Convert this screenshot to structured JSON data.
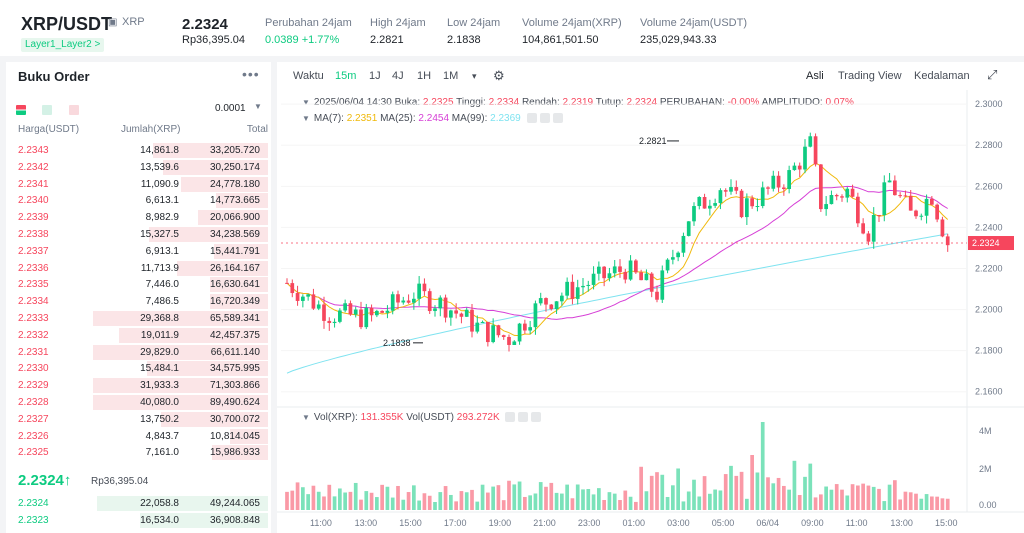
{
  "header": {
    "pair": "XRP/USDT",
    "base_label": "XRP",
    "tag": "Layer1_Layer2 >",
    "last_price": "2.2324",
    "last_price_rp": "Rp36,395.04",
    "stats": [
      {
        "label": "Perubahan 24jam",
        "value": "0.0389 +1.77%",
        "color": "#0ecb81"
      },
      {
        "label": "High 24jam",
        "value": "2.2821"
      },
      {
        "label": "Low 24jam",
        "value": "2.1838"
      },
      {
        "label": "Volume 24jam(XRP)",
        "value": "104,861,501.50"
      },
      {
        "label": "Volume 24jam(USDT)",
        "value": "235,029,943.33"
      }
    ]
  },
  "orderbook": {
    "title": "Buku Order",
    "more": "•••",
    "tick": "0.0001",
    "col_price": "Harga(USDT)",
    "col_qty": "Jumlah(XRP)",
    "col_total": "Total",
    "asks": [
      {
        "p": "2.2343",
        "q": "14,861.8",
        "t": "33,205.720",
        "d": 0.66
      },
      {
        "p": "2.2342",
        "q": "13,539.6",
        "t": "30,250.174",
        "d": 0.6
      },
      {
        "p": "2.2341",
        "q": "11,090.9",
        "t": "24,778.180",
        "d": 0.5
      },
      {
        "p": "2.2340",
        "q": "6,613.1",
        "t": "14,773.665",
        "d": 0.3
      },
      {
        "p": "2.2339",
        "q": "8,982.9",
        "t": "20,066.900",
        "d": 0.4
      },
      {
        "p": "2.2338",
        "q": "15,327.5",
        "t": "34,238.569",
        "d": 0.68
      },
      {
        "p": "2.2337",
        "q": "6,913.1",
        "t": "15,441.791",
        "d": 0.31
      },
      {
        "p": "2.2336",
        "q": "11,713.9",
        "t": "26,164.167",
        "d": 0.52
      },
      {
        "p": "2.2335",
        "q": "7,446.0",
        "t": "16,630.641",
        "d": 0.33
      },
      {
        "p": "2.2334",
        "q": "7,486.5",
        "t": "16,720.349",
        "d": 0.33
      },
      {
        "p": "2.2333",
        "q": "29,368.8",
        "t": "65,589.341",
        "d": 1.0
      },
      {
        "p": "2.2332",
        "q": "19,011.9",
        "t": "42,457.375",
        "d": 0.85
      },
      {
        "p": "2.2331",
        "q": "29,829.0",
        "t": "66,611.140",
        "d": 1.0
      },
      {
        "p": "2.2330",
        "q": "15,484.1",
        "t": "34,575.995",
        "d": 0.69
      },
      {
        "p": "2.2329",
        "q": "31,933.3",
        "t": "71,303.866",
        "d": 1.0
      },
      {
        "p": "2.2328",
        "q": "40,080.0",
        "t": "89,490.624",
        "d": 1.0
      },
      {
        "p": "2.2327",
        "q": "13,750.2",
        "t": "30,700.072",
        "d": 0.61
      },
      {
        "p": "2.2326",
        "q": "4,843.7",
        "t": "10,814.045",
        "d": 0.22
      },
      {
        "p": "2.2325",
        "q": "7,161.0",
        "t": "15,986.933",
        "d": 0.32
      }
    ],
    "mid_price": "2.2324↑",
    "mid_rp": "Rp36,395.04",
    "bids": [
      {
        "p": "2.2324",
        "q": "22,058.8",
        "t": "49,244.065",
        "d": 0.98
      },
      {
        "p": "2.2323",
        "q": "16,534.0",
        "t": "36,908.848",
        "d": 0.73
      }
    ]
  },
  "toolbar": {
    "items": [
      "Waktu",
      "15m",
      "1J",
      "4J",
      "1H",
      "1M",
      "▾"
    ],
    "right": [
      "Asli",
      "Trading View",
      "Kedalaman"
    ]
  },
  "chart_info": {
    "line1_prefix": "2025/06/04 14:30",
    "open_label": "Buka:",
    "open": "2.2325",
    "high_label": "Tinggi:",
    "high": "2.2334",
    "low_label": "Rendah:",
    "low": "2.2319",
    "close_label": "Tutup:",
    "close": "2.2324",
    "change_label": "PERUBAHAN:",
    "change": "-0.00%",
    "ampl_label": "AMPLITUDO:",
    "ampl": "0.07%",
    "ma7_label": "MA(7):",
    "ma7": "2.2351",
    "ma25_label": "MA(25):",
    "ma25": "2.2454",
    "ma99_label": "MA(99):",
    "ma99": "2.2369",
    "vol_label": "Vol(XRP):",
    "vol": "131.355K",
    "volusdt_label": "Vol(USDT)",
    "volusdt": "293.272K"
  },
  "chart_data": {
    "type": "candlestick",
    "y_ticks": [
      "2.3000",
      "2.2800",
      "2.2600",
      "2.2400",
      "2.2200",
      "2.2000",
      "2.1800",
      "2.1600"
    ],
    "ylim": [
      2.155,
      2.303
    ],
    "x_ticks": [
      "11:00",
      "13:00",
      "15:00",
      "17:00",
      "19:00",
      "21:00",
      "23:00",
      "01:00",
      "03:00",
      "05:00",
      "06/04",
      "09:00",
      "11:00",
      "13:00",
      "15:00"
    ],
    "high_label": "2.2821",
    "low_label": "2.1838",
    "current_price": "2.2324",
    "vol_ticks": [
      "4M",
      "2M",
      "0.00"
    ],
    "colors": {
      "up": "#0ecb81",
      "down": "#f6465d",
      "ma7": "#f0b90b",
      "ma25": "#d63fd6",
      "ma99": "#7fe3f0"
    }
  }
}
